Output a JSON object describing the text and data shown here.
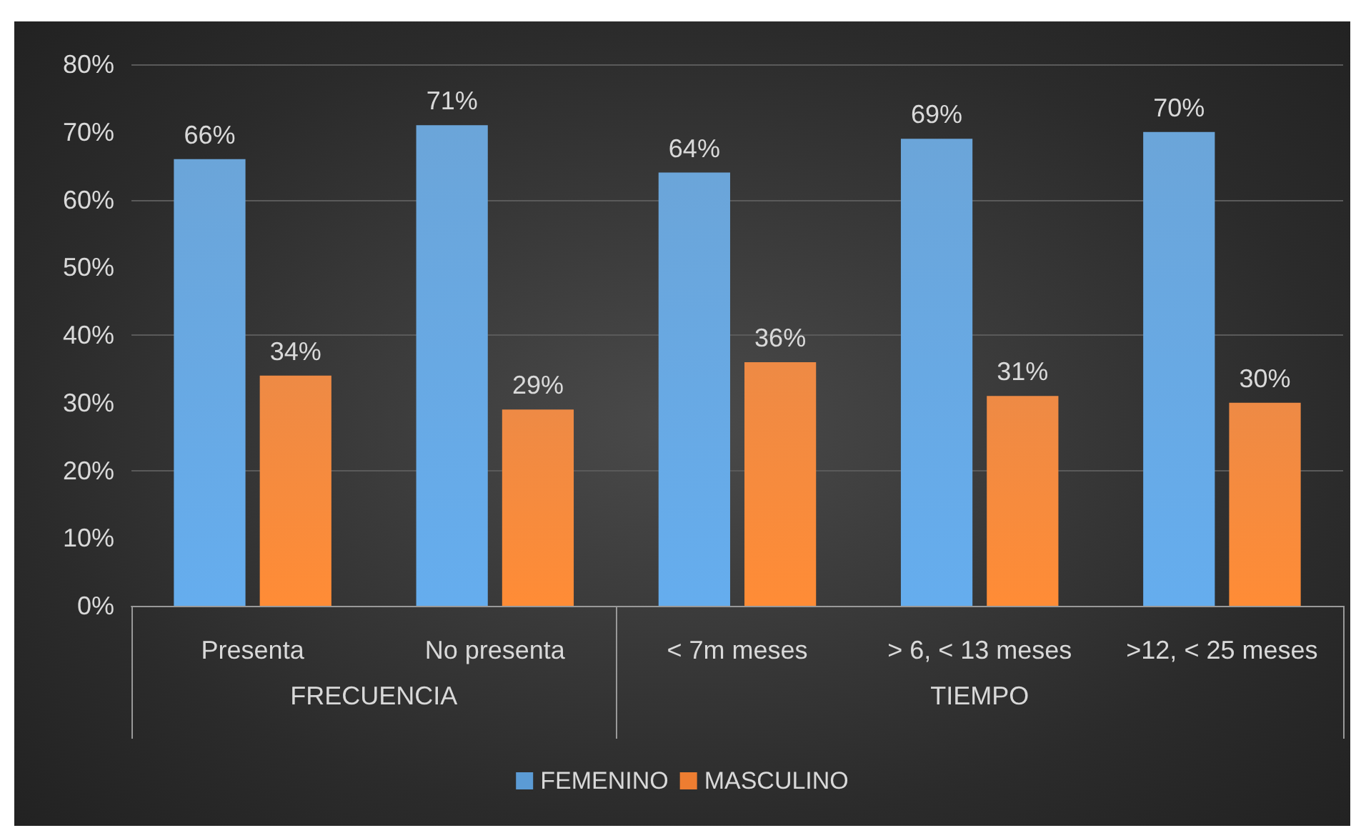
{
  "chart_data": {
    "type": "bar",
    "categories": [
      "Presenta",
      "No presenta",
      "< 7m meses",
      "> 6, < 13 meses",
      ">12, < 25 meses"
    ],
    "series": [
      {
        "name": "FEMENINO",
        "color": "#5b9bd5",
        "values": [
          66,
          71,
          64,
          69,
          70
        ],
        "value_labels": [
          "66%",
          "71%",
          "64%",
          "69%",
          "70%"
        ]
      },
      {
        "name": "MASCULINO",
        "color": "#ed7d31",
        "values": [
          34,
          29,
          36,
          31,
          30
        ],
        "value_labels": [
          "34%",
          "29%",
          "36%",
          "31%",
          "30%"
        ]
      }
    ],
    "annotations": [
      "FRECUENCIA",
      "TIEMPO"
    ],
    "ylim": [
      0,
      80
    ],
    "yticks": [
      {
        "value": 0,
        "label": "0%"
      },
      {
        "value": 10,
        "label": "10%"
      },
      {
        "value": 20,
        "label": "20%"
      },
      {
        "value": 30,
        "label": "30%"
      },
      {
        "value": 40,
        "label": "40%"
      },
      {
        "value": 50,
        "label": "50%"
      },
      {
        "value": 60,
        "label": "60%"
      },
      {
        "value": 70,
        "label": "70%"
      },
      {
        "value": 80,
        "label": "80%"
      }
    ],
    "grid": "y",
    "legend": "bottom"
  }
}
